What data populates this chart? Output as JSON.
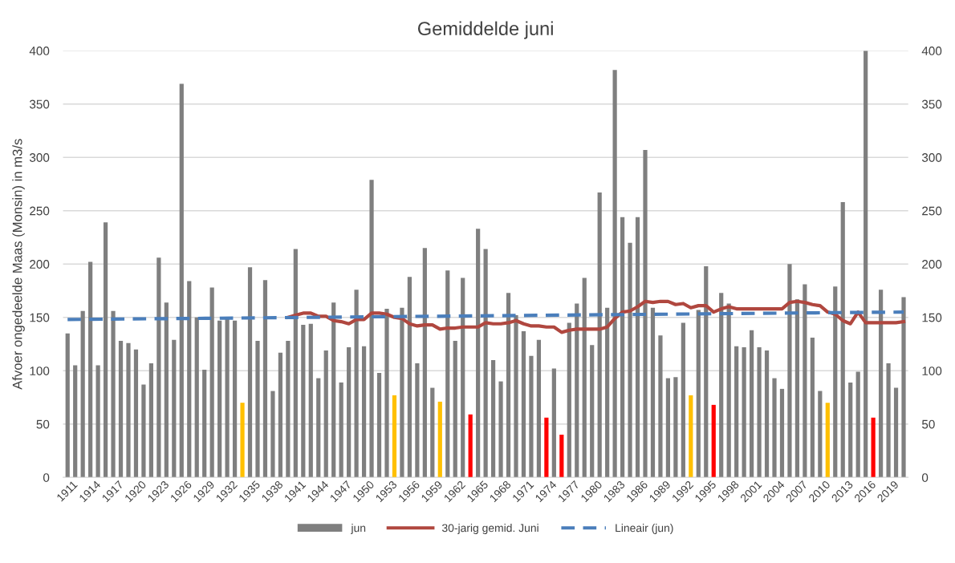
{
  "chart_data": {
    "type": "bar",
    "title": "Gemiddelde juni",
    "ylabel": "Afvoer ongedeelde Maas (Monsin) in m3/s",
    "xlim": [
      1910.4,
      2021.6
    ],
    "xticks": [
      1911,
      1914,
      1917,
      1920,
      1923,
      1926,
      1929,
      1932,
      1935,
      1938,
      1941,
      1944,
      1947,
      1950,
      1953,
      1956,
      1959,
      1962,
      1965,
      1968,
      1971,
      1974,
      1977,
      1980,
      1983,
      1986,
      1989,
      1992,
      1995,
      1998,
      2001,
      2004,
      2007,
      2010,
      2013,
      2016,
      2019
    ],
    "ylim": [
      0,
      400
    ],
    "yticks": [
      0,
      50,
      100,
      150,
      200,
      250,
      300,
      350,
      400
    ],
    "y2lim": [
      0,
      400
    ],
    "y2ticks": [
      0,
      50,
      100,
      150,
      200,
      250,
      300,
      350,
      400
    ],
    "grid": "y",
    "legend": "bottom",
    "series": [
      {
        "name": "jun",
        "color": "#7f7f7f",
        "x": [
          1911,
          1912,
          1913,
          1914,
          1915,
          1916,
          1917,
          1918,
          1919,
          1920,
          1921,
          1922,
          1923,
          1924,
          1925,
          1926,
          1927,
          1928,
          1929,
          1930,
          1931,
          1932,
          1933,
          1934,
          1935,
          1936,
          1937,
          1938,
          1939,
          1940,
          1941,
          1942,
          1943,
          1944,
          1945,
          1946,
          1947,
          1948,
          1949,
          1950,
          1951,
          1952,
          1953,
          1954,
          1955,
          1956,
          1957,
          1958,
          1959,
          1960,
          1961,
          1962,
          1963,
          1964,
          1965,
          1966,
          1967,
          1968,
          1969,
          1970,
          1971,
          1972,
          1973,
          1974,
          1975,
          1976,
          1977,
          1978,
          1979,
          1980,
          1981,
          1982,
          1983,
          1984,
          1985,
          1986,
          1987,
          1988,
          1989,
          1990,
          1991,
          1992,
          1993,
          1994,
          1995,
          1996,
          1997,
          1998,
          1999,
          2000,
          2001,
          2002,
          2003,
          2004,
          2005,
          2006,
          2007,
          2008,
          2009,
          2010,
          2011,
          2012,
          2013,
          2014,
          2015,
          2016,
          2017,
          2018,
          2019,
          2020,
          2021
        ],
        "values": [
          135,
          105,
          156,
          202,
          105,
          239,
          156,
          128,
          126,
          120,
          87,
          107,
          206,
          164,
          129,
          369,
          184,
          150,
          101,
          178,
          147,
          150,
          147,
          70,
          197,
          128,
          185,
          81,
          117,
          128,
          214,
          143,
          144,
          93,
          119,
          164,
          89,
          122,
          176,
          123,
          279,
          98,
          158,
          77,
          159,
          188,
          107,
          215,
          84,
          71,
          194,
          128,
          187,
          59,
          233,
          214,
          110,
          90,
          173,
          152,
          137,
          114,
          129,
          56,
          102,
          40,
          145,
          163,
          187,
          124,
          267,
          159,
          382,
          244,
          220,
          244,
          307,
          159,
          133,
          93,
          94,
          145,
          77,
          157,
          198,
          68,
          173,
          163,
          123,
          122,
          138,
          122,
          119,
          93,
          83,
          200,
          167,
          181,
          131,
          81,
          70,
          179,
          258,
          89,
          99,
          400,
          56,
          176,
          107,
          84,
          169
        ],
        "colors": [
          "#7f7f7f",
          "#7f7f7f",
          "#7f7f7f",
          "#7f7f7f",
          "#7f7f7f",
          "#7f7f7f",
          "#7f7f7f",
          "#7f7f7f",
          "#7f7f7f",
          "#7f7f7f",
          "#7f7f7f",
          "#7f7f7f",
          "#7f7f7f",
          "#7f7f7f",
          "#7f7f7f",
          "#7f7f7f",
          "#7f7f7f",
          "#7f7f7f",
          "#7f7f7f",
          "#7f7f7f",
          "#7f7f7f",
          "#7f7f7f",
          "#7f7f7f",
          "#ffc000",
          "#7f7f7f",
          "#7f7f7f",
          "#7f7f7f",
          "#7f7f7f",
          "#7f7f7f",
          "#7f7f7f",
          "#7f7f7f",
          "#7f7f7f",
          "#7f7f7f",
          "#7f7f7f",
          "#7f7f7f",
          "#7f7f7f",
          "#7f7f7f",
          "#7f7f7f",
          "#7f7f7f",
          "#7f7f7f",
          "#7f7f7f",
          "#7f7f7f",
          "#7f7f7f",
          "#ffc000",
          "#7f7f7f",
          "#7f7f7f",
          "#7f7f7f",
          "#7f7f7f",
          "#7f7f7f",
          "#ffc000",
          "#7f7f7f",
          "#7f7f7f",
          "#7f7f7f",
          "#ff0000",
          "#7f7f7f",
          "#7f7f7f",
          "#7f7f7f",
          "#7f7f7f",
          "#7f7f7f",
          "#7f7f7f",
          "#7f7f7f",
          "#7f7f7f",
          "#7f7f7f",
          "#ff0000",
          "#7f7f7f",
          "#ff0000",
          "#7f7f7f",
          "#7f7f7f",
          "#7f7f7f",
          "#7f7f7f",
          "#7f7f7f",
          "#7f7f7f",
          "#7f7f7f",
          "#7f7f7f",
          "#7f7f7f",
          "#7f7f7f",
          "#7f7f7f",
          "#7f7f7f",
          "#7f7f7f",
          "#7f7f7f",
          "#7f7f7f",
          "#7f7f7f",
          "#ffc000",
          "#7f7f7f",
          "#7f7f7f",
          "#ff0000",
          "#7f7f7f",
          "#7f7f7f",
          "#7f7f7f",
          "#7f7f7f",
          "#7f7f7f",
          "#7f7f7f",
          "#7f7f7f",
          "#7f7f7f",
          "#7f7f7f",
          "#7f7f7f",
          "#7f7f7f",
          "#7f7f7f",
          "#7f7f7f",
          "#7f7f7f",
          "#ffc000",
          "#7f7f7f",
          "#7f7f7f",
          "#7f7f7f",
          "#7f7f7f",
          "#7f7f7f",
          "#ff0000",
          "#7f7f7f",
          "#7f7f7f",
          "#7f7f7f",
          "#7f7f7f"
        ]
      },
      {
        "name": "30-jarig gemid. Juni",
        "type": "line",
        "color": "#b0473f",
        "line_style": "solid",
        "x": [
          1940,
          1941,
          1942,
          1943,
          1944,
          1945,
          1946,
          1947,
          1948,
          1949,
          1950,
          1951,
          1952,
          1953,
          1954,
          1955,
          1956,
          1957,
          1958,
          1959,
          1960,
          1961,
          1962,
          1963,
          1964,
          1965,
          1966,
          1967,
          1968,
          1969,
          1970,
          1971,
          1972,
          1973,
          1974,
          1975,
          1976,
          1977,
          1978,
          1979,
          1980,
          1981,
          1982,
          1983,
          1984,
          1985,
          1986,
          1987,
          1988,
          1989,
          1990,
          1991,
          1992,
          1993,
          1994,
          1995,
          1996,
          1997,
          1998,
          1999,
          2000,
          2001,
          2002,
          2003,
          2004,
          2005,
          2006,
          2007,
          2008,
          2009,
          2010,
          2011,
          2012,
          2013,
          2014,
          2015,
          2016,
          2017,
          2018,
          2019,
          2020,
          2021
        ],
        "values": [
          150,
          152,
          154,
          154,
          151,
          151,
          147,
          146,
          144,
          148,
          148,
          154,
          154,
          153,
          150,
          149,
          144,
          142,
          143,
          143,
          139,
          140,
          140,
          141,
          141,
          141,
          145,
          144,
          144,
          145,
          147,
          144,
          142,
          142,
          141,
          141,
          136,
          138,
          139,
          139,
          139,
          139,
          141,
          149,
          155,
          156,
          160,
          165,
          164,
          165,
          165,
          162,
          163,
          159,
          161,
          161,
          155,
          158,
          160,
          158,
          158,
          158,
          158,
          158,
          158,
          158,
          164,
          165,
          164,
          162,
          161,
          155,
          153,
          147,
          144,
          155,
          145,
          145,
          145,
          145,
          145,
          146
        ]
      },
      {
        "name": "Lineair (jun)",
        "type": "line",
        "color": "#4a7ebb",
        "line_style": "dashed",
        "x": [
          1911,
          2021
        ],
        "values": [
          148,
          155
        ]
      }
    ]
  }
}
